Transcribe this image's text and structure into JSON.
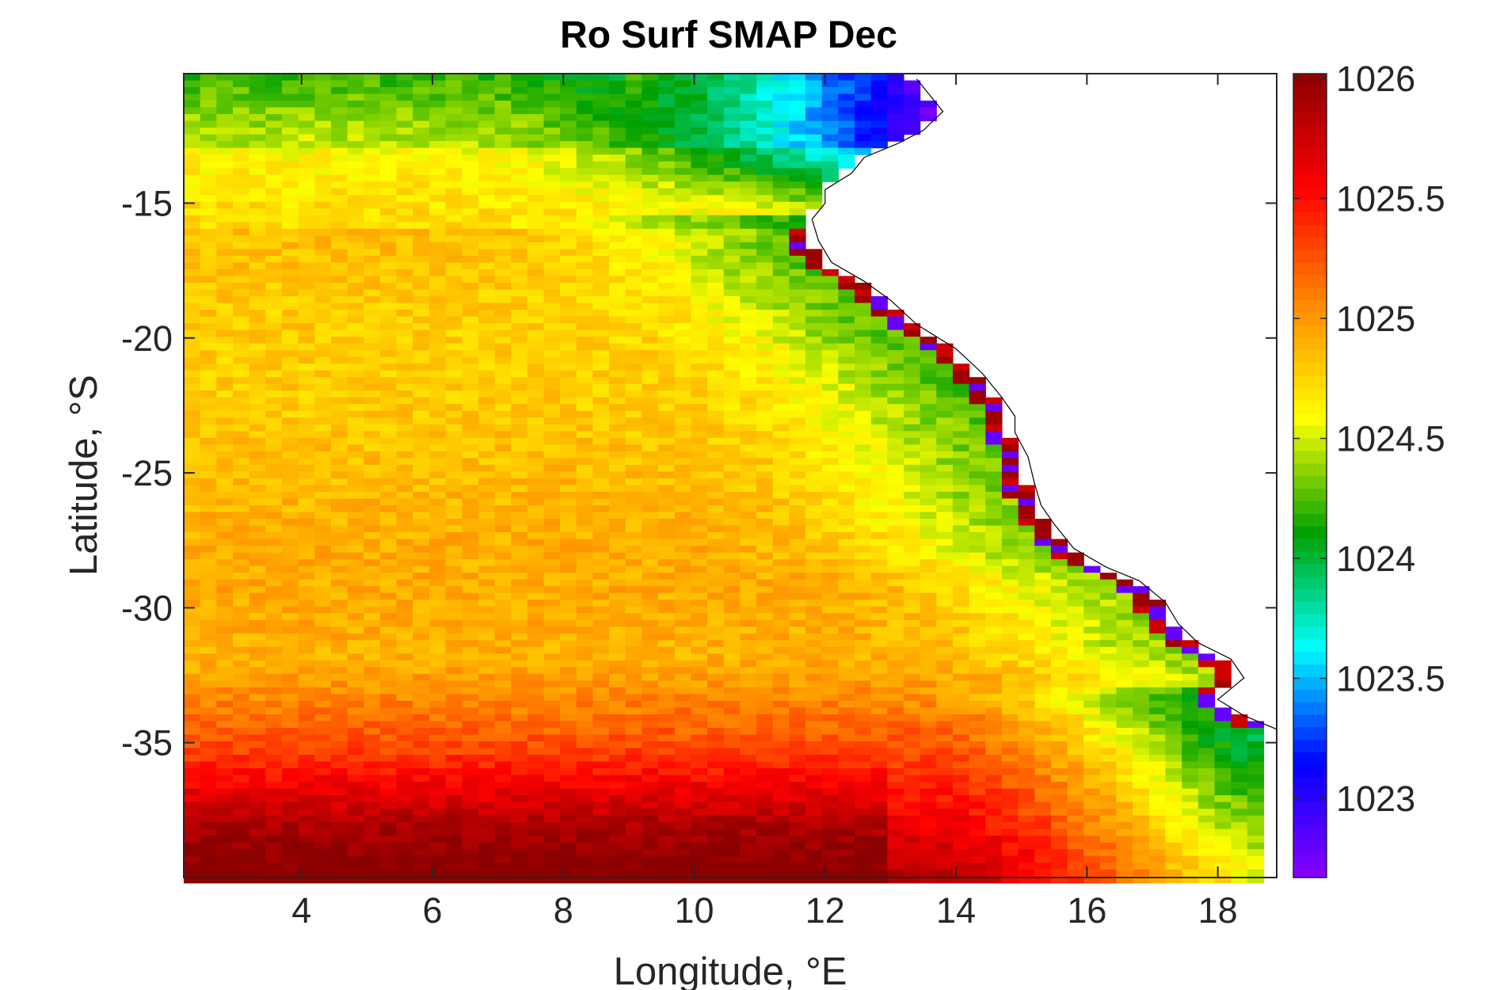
{
  "chart_data": {
    "type": "heatmap",
    "title": "Ro Surf SMAP Dec",
    "xlabel": "Longitude, °E",
    "ylabel": "Latitude, °S",
    "xlim": [
      2.2,
      18.9
    ],
    "ylim": [
      -40,
      -10.2
    ],
    "xticks": [
      4,
      6,
      8,
      10,
      12,
      14,
      16,
      18
    ],
    "yticks": [
      -15,
      -20,
      -25,
      -30,
      -35
    ],
    "xtick_labels": [
      "4",
      "6",
      "8",
      "10",
      "12",
      "14",
      "16",
      "18"
    ],
    "ytick_labels": [
      "-15",
      "-20",
      "-25",
      "-30",
      "-35"
    ],
    "cell_size_deg": 0.25,
    "grid": false,
    "colorbar": {
      "location": "right",
      "clim": [
        1022.67,
        1026.02
      ],
      "ticks": [
        1023,
        1023.5,
        1024,
        1024.5,
        1025,
        1025.5,
        1026
      ],
      "tick_labels": [
        "1023",
        "1023.5",
        "1024",
        "1024.5",
        "1025",
        "1025.5",
        "1026"
      ],
      "colormap": [
        "#8b00ff",
        "#0000ff",
        "#00ffff",
        "#00a000",
        "#ffff00",
        "#ff8800",
        "#ff0000",
        "#8b0000"
      ]
    },
    "coastline": [
      [
        13.4,
        -10.4
      ],
      [
        13.6,
        -11.0
      ],
      [
        13.8,
        -11.6
      ],
      [
        13.5,
        -12.3
      ],
      [
        13.1,
        -12.8
      ],
      [
        12.6,
        -13.3
      ],
      [
        12.4,
        -13.9
      ],
      [
        12.0,
        -14.5
      ],
      [
        12.0,
        -15.0
      ],
      [
        11.8,
        -15.6
      ],
      [
        11.9,
        -16.4
      ],
      [
        12.1,
        -17.2
      ],
      [
        12.6,
        -17.9
      ],
      [
        13.0,
        -18.6
      ],
      [
        13.4,
        -19.5
      ],
      [
        14.0,
        -20.4
      ],
      [
        14.4,
        -21.3
      ],
      [
        14.7,
        -22.2
      ],
      [
        14.9,
        -22.9
      ],
      [
        14.9,
        -23.5
      ],
      [
        15.1,
        -24.4
      ],
      [
        15.2,
        -25.4
      ],
      [
        15.3,
        -26.2
      ],
      [
        15.5,
        -26.9
      ],
      [
        15.8,
        -27.8
      ],
      [
        16.3,
        -28.5
      ],
      [
        16.8,
        -29.0
      ],
      [
        17.2,
        -29.8
      ],
      [
        17.4,
        -30.6
      ],
      [
        17.7,
        -31.3
      ],
      [
        18.2,
        -31.9
      ],
      [
        18.4,
        -32.6
      ],
      [
        18.0,
        -33.4
      ],
      [
        18.4,
        -34.0
      ],
      [
        18.8,
        -34.4
      ],
      [
        18.9,
        -34.5
      ]
    ],
    "grid_model": {
      "description_fields": "Approximate SMAP surface density field, kg/m3",
      "north_band": [
        {
          "lat": -10.5,
          "lon_west": 2.2,
          "lon_east": 13.4,
          "values_west_to_east": [
            1024.1,
            1024.2,
            1024.3,
            1024.3,
            1024.2,
            1024.0,
            1023.7,
            1023.2,
            1023.0
          ]
        },
        {
          "lat": -12.5,
          "lon_west": 2.2,
          "lon_east": 12.4,
          "values_west_to_east": [
            1024.6,
            1024.6,
            1024.5,
            1024.5,
            1024.4,
            1024.3,
            1024.1,
            1023.6,
            1023.3
          ]
        },
        {
          "lat": -14.5,
          "lon_west": 2.2,
          "lon_east": 11.9,
          "values_west_to_east": [
            1024.8,
            1024.7,
            1024.6,
            1024.6,
            1024.5,
            1024.5,
            1024.3,
            1024.1,
            1023.6
          ]
        }
      ],
      "south_band": [
        {
          "lat": -34.0,
          "values_west_to_east": [
            1025.4,
            1025.4,
            1025.3,
            1025.1,
            1025.0,
            1024.8,
            1024.6,
            1024.4,
            1024.2
          ]
        },
        {
          "lat": -37.0,
          "values_west_to_east": [
            1025.6,
            1025.7,
            1025.7,
            1025.6,
            1025.5,
            1025.2,
            1024.9,
            1024.6,
            1024.4
          ]
        },
        {
          "lat": -39.5,
          "values_west_to_east": [
            1025.8,
            1025.9,
            1025.9,
            1025.8,
            1025.7,
            1025.5,
            1025.3,
            1025.1,
            1024.9
          ]
        }
      ]
    }
  }
}
